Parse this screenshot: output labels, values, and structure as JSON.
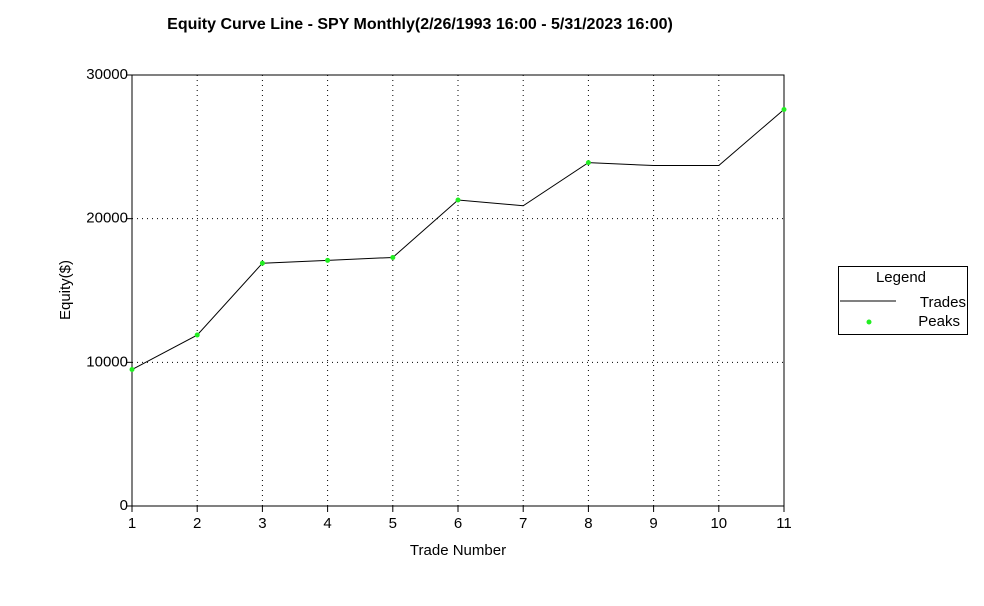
{
  "chart_data": {
    "type": "line",
    "title": "Equity Curve Line - SPY Monthly(2/26/1993 16:00 - 5/31/2023 16:00)",
    "x_label": "Trade Number",
    "y_label": "Equity($)",
    "x": [
      1,
      2,
      3,
      4,
      5,
      6,
      7,
      8,
      9,
      10,
      11
    ],
    "series": [
      {
        "name": "Trades",
        "color": "#000000",
        "values": [
          9500,
          11900,
          16900,
          17100,
          17300,
          21300,
          20900,
          23900,
          23700,
          23700,
          27600
        ]
      },
      {
        "name": "Peaks",
        "color": "#22ee22",
        "values": [
          9500,
          11900,
          16900,
          17100,
          17300,
          21300,
          null,
          23900,
          null,
          null,
          27600
        ]
      }
    ],
    "xlim": [
      1,
      11
    ],
    "xticks": [
      1,
      2,
      3,
      4,
      5,
      6,
      7,
      8,
      9,
      10,
      11
    ],
    "ylim": [
      0,
      30000
    ],
    "yticks": [
      0,
      10000,
      20000,
      30000
    ],
    "grid": true,
    "legend_title": "Legend",
    "legend": "right"
  }
}
